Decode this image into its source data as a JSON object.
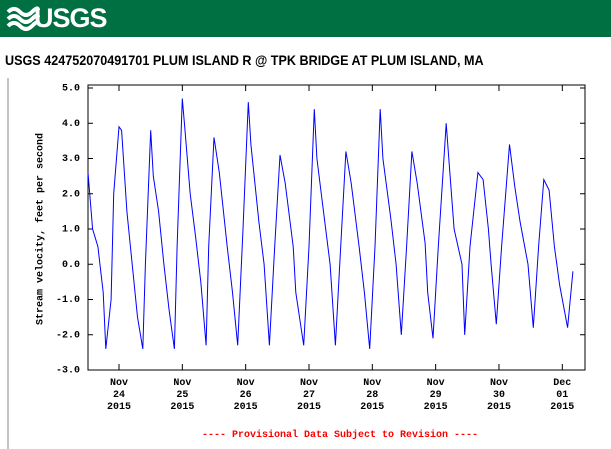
{
  "header": {
    "logo": "USGS"
  },
  "chart_data": {
    "type": "line",
    "title": "USGS 424752070491701 PLUM ISLAND R @ TPK BRIDGE AT PLUM ISLAND, MA",
    "y_label": "Stream velocity, feet per second",
    "note": "---- Provisional Data Subject to Revision ----",
    "color": "#0000ff",
    "xlim": [
      "2015-11-23 12:15",
      "2015-12-01 08:36"
    ],
    "ylim": [
      -3,
      5
    ],
    "yticks": [
      {
        "value": 5,
        "label": "5.0"
      },
      {
        "value": 4,
        "label": "4.0"
      },
      {
        "value": 3,
        "label": "3.0"
      },
      {
        "value": 2,
        "label": "2.0"
      },
      {
        "value": 1,
        "label": "1.0"
      },
      {
        "value": 0,
        "label": "0.0"
      },
      {
        "value": -1,
        "label": "-1.0"
      },
      {
        "value": -2,
        "label": "-2.0"
      },
      {
        "value": -3,
        "label": "-3.0"
      }
    ],
    "xticks": [
      {
        "value": "2015-11-24 00:00",
        "label": "Nov\n24\n2015"
      },
      {
        "value": "2015-11-25 00:00",
        "label": "Nov\n25\n2015"
      },
      {
        "value": "2015-11-26 00:00",
        "label": "Nov\n26\n2015"
      },
      {
        "value": "2015-11-27 00:00",
        "label": "Nov\n27\n2015"
      },
      {
        "value": "2015-11-28 00:00",
        "label": "Nov\n28\n2015"
      },
      {
        "value": "2015-11-29 00:00",
        "label": "Nov\n29\n2015"
      },
      {
        "value": "2015-11-30 00:00",
        "label": "Nov\n30\n2015"
      },
      {
        "value": "2015-12-01 00:00",
        "label": "Dec\n01\n2015"
      }
    ],
    "x": [
      "2015-11-23 12:15",
      "2015-11-23 14:00",
      "2015-11-23 16:00",
      "2015-11-23 18:00",
      "2015-11-23 19:00",
      "2015-11-23 21:00",
      "2015-11-23 22:00",
      "2015-11-24 00:00",
      "2015-11-24 01:00",
      "2015-11-24 03:00",
      "2015-11-24 05:00",
      "2015-11-24 07:00",
      "2015-11-24 09:00",
      "2015-11-24 10:00",
      "2015-11-24 12:00",
      "2015-11-24 13:00",
      "2015-11-24 15:00",
      "2015-11-24 17:00",
      "2015-11-24 19:00",
      "2015-11-24 21:00",
      "2015-11-24 22:00",
      "2015-11-25 00:00",
      "2015-11-25 01:00",
      "2015-11-25 03:00",
      "2015-11-25 05:00",
      "2015-11-25 07:00",
      "2015-11-25 09:00",
      "2015-11-25 10:00",
      "2015-11-25 12:00",
      "2015-11-25 14:00",
      "2015-11-25 17:00",
      "2015-11-25 19:00",
      "2015-11-25 21:00",
      "2015-11-25 23:00",
      "2015-11-26 01:00",
      "2015-11-26 02:00",
      "2015-11-26 05:00",
      "2015-11-26 07:00",
      "2015-11-26 09:00",
      "2015-11-26 11:00",
      "2015-11-26 13:00",
      "2015-11-26 15:00",
      "2015-11-26 18:00",
      "2015-11-26 19:00",
      "2015-11-26 22:00",
      "2015-11-27 00:00",
      "2015-11-27 02:00",
      "2015-11-27 03:00",
      "2015-11-27 06:00",
      "2015-11-27 08:00",
      "2015-11-27 10:00",
      "2015-11-27 12:00",
      "2015-11-27 14:00",
      "2015-11-27 16:00",
      "2015-11-27 19:00",
      "2015-11-27 21:00",
      "2015-11-27 23:00",
      "2015-11-28 01:00",
      "2015-11-28 03:00",
      "2015-11-28 04:00",
      "2015-11-28 07:00",
      "2015-11-28 09:00",
      "2015-11-28 11:00",
      "2015-11-28 13:00",
      "2015-11-28 15:00",
      "2015-11-28 17:00",
      "2015-11-28 20:00",
      "2015-11-28 21:00",
      "2015-11-28 23:00",
      "2015-11-29 01:00",
      "2015-11-29 04:00",
      "2015-11-29 05:00",
      "2015-11-29 07:00",
      "2015-11-29 10:00",
      "2015-11-29 11:00",
      "2015-11-29 13:00",
      "2015-11-29 16:00",
      "2015-11-29 18:00",
      "2015-11-29 20:00",
      "2015-11-29 21:00",
      "2015-11-29 23:00",
      "2015-11-30 01:00",
      "2015-11-30 04:00",
      "2015-11-30 06:00",
      "2015-11-30 08:00",
      "2015-11-30 11:00",
      "2015-11-30 13:00",
      "2015-11-30 15:00",
      "2015-11-30 17:00",
      "2015-11-30 19:00",
      "2015-11-30 21:00",
      "2015-11-30 23:00",
      "2015-12-01 02:00",
      "2015-12-01 04:00"
    ],
    "values": [
      2.6,
      1.0,
      0.5,
      -0.8,
      -2.4,
      -1.0,
      2.0,
      3.9,
      3.8,
      1.5,
      0.0,
      -1.5,
      -2.4,
      0.0,
      3.8,
      2.5,
      1.5,
      0.0,
      -1.3,
      -2.4,
      0.5,
      4.7,
      3.8,
      2.0,
      0.8,
      -0.5,
      -2.3,
      0.5,
      3.6,
      2.6,
      0.5,
      -0.8,
      -2.3,
      1.0,
      4.6,
      3.4,
      1.2,
      0.0,
      -2.3,
      0.5,
      3.1,
      2.3,
      0.5,
      -0.8,
      -2.3,
      0.5,
      4.4,
      3.0,
      1.2,
      0.0,
      -2.3,
      0.5,
      3.2,
      2.3,
      0.5,
      -0.8,
      -2.4,
      0.5,
      4.4,
      3.0,
      1.3,
      0.0,
      -2.0,
      0.5,
      3.2,
      2.3,
      0.6,
      -0.8,
      -2.1,
      0.5,
      4.0,
      3.0,
      1.0,
      0.0,
      -2.0,
      0.5,
      2.6,
      2.4,
      1.0,
      0.0,
      -1.7,
      0.5,
      3.4,
      2.2,
      1.2,
      0.0,
      -1.8,
      0.5,
      2.4,
      2.1,
      0.5,
      -0.6,
      -1.8,
      -0.2
    ]
  }
}
